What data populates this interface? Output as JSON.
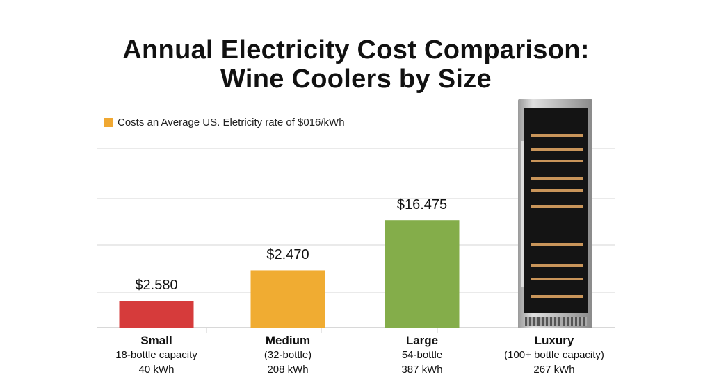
{
  "chart_data": {
    "type": "bar",
    "title": [
      "Annual Electricity Cost Comparison:",
      "Wine Coolers by Size"
    ],
    "legend": {
      "label": "Costs an Average US. Eletricity rate of $016/kWh",
      "color": "#f0a832",
      "position": "top-left"
    },
    "grid": true,
    "categories": [
      {
        "name": "Small",
        "detail": "18-bottle capacity",
        "energy": "40 kWh"
      },
      {
        "name": "Medium",
        "detail": "(32-bottle)",
        "energy": "208 kWh"
      },
      {
        "name": "Large",
        "detail": "54-bottle",
        "energy": "387 kWh"
      },
      {
        "name": "Luxury",
        "detail": "(100+ bottle capacity)",
        "energy": "267 kWh"
      }
    ],
    "bars": [
      {
        "label": "$2.580",
        "level": 0.15,
        "color": "#d63b3b"
      },
      {
        "label": "$2.470",
        "level": 0.32,
        "color": "#f0ac32"
      },
      {
        "label": "$16.475",
        "level": 0.6,
        "color": "#84ad4a"
      },
      {
        "label": "",
        "level": null,
        "color": "",
        "image": "wine-cooler"
      }
    ]
  }
}
